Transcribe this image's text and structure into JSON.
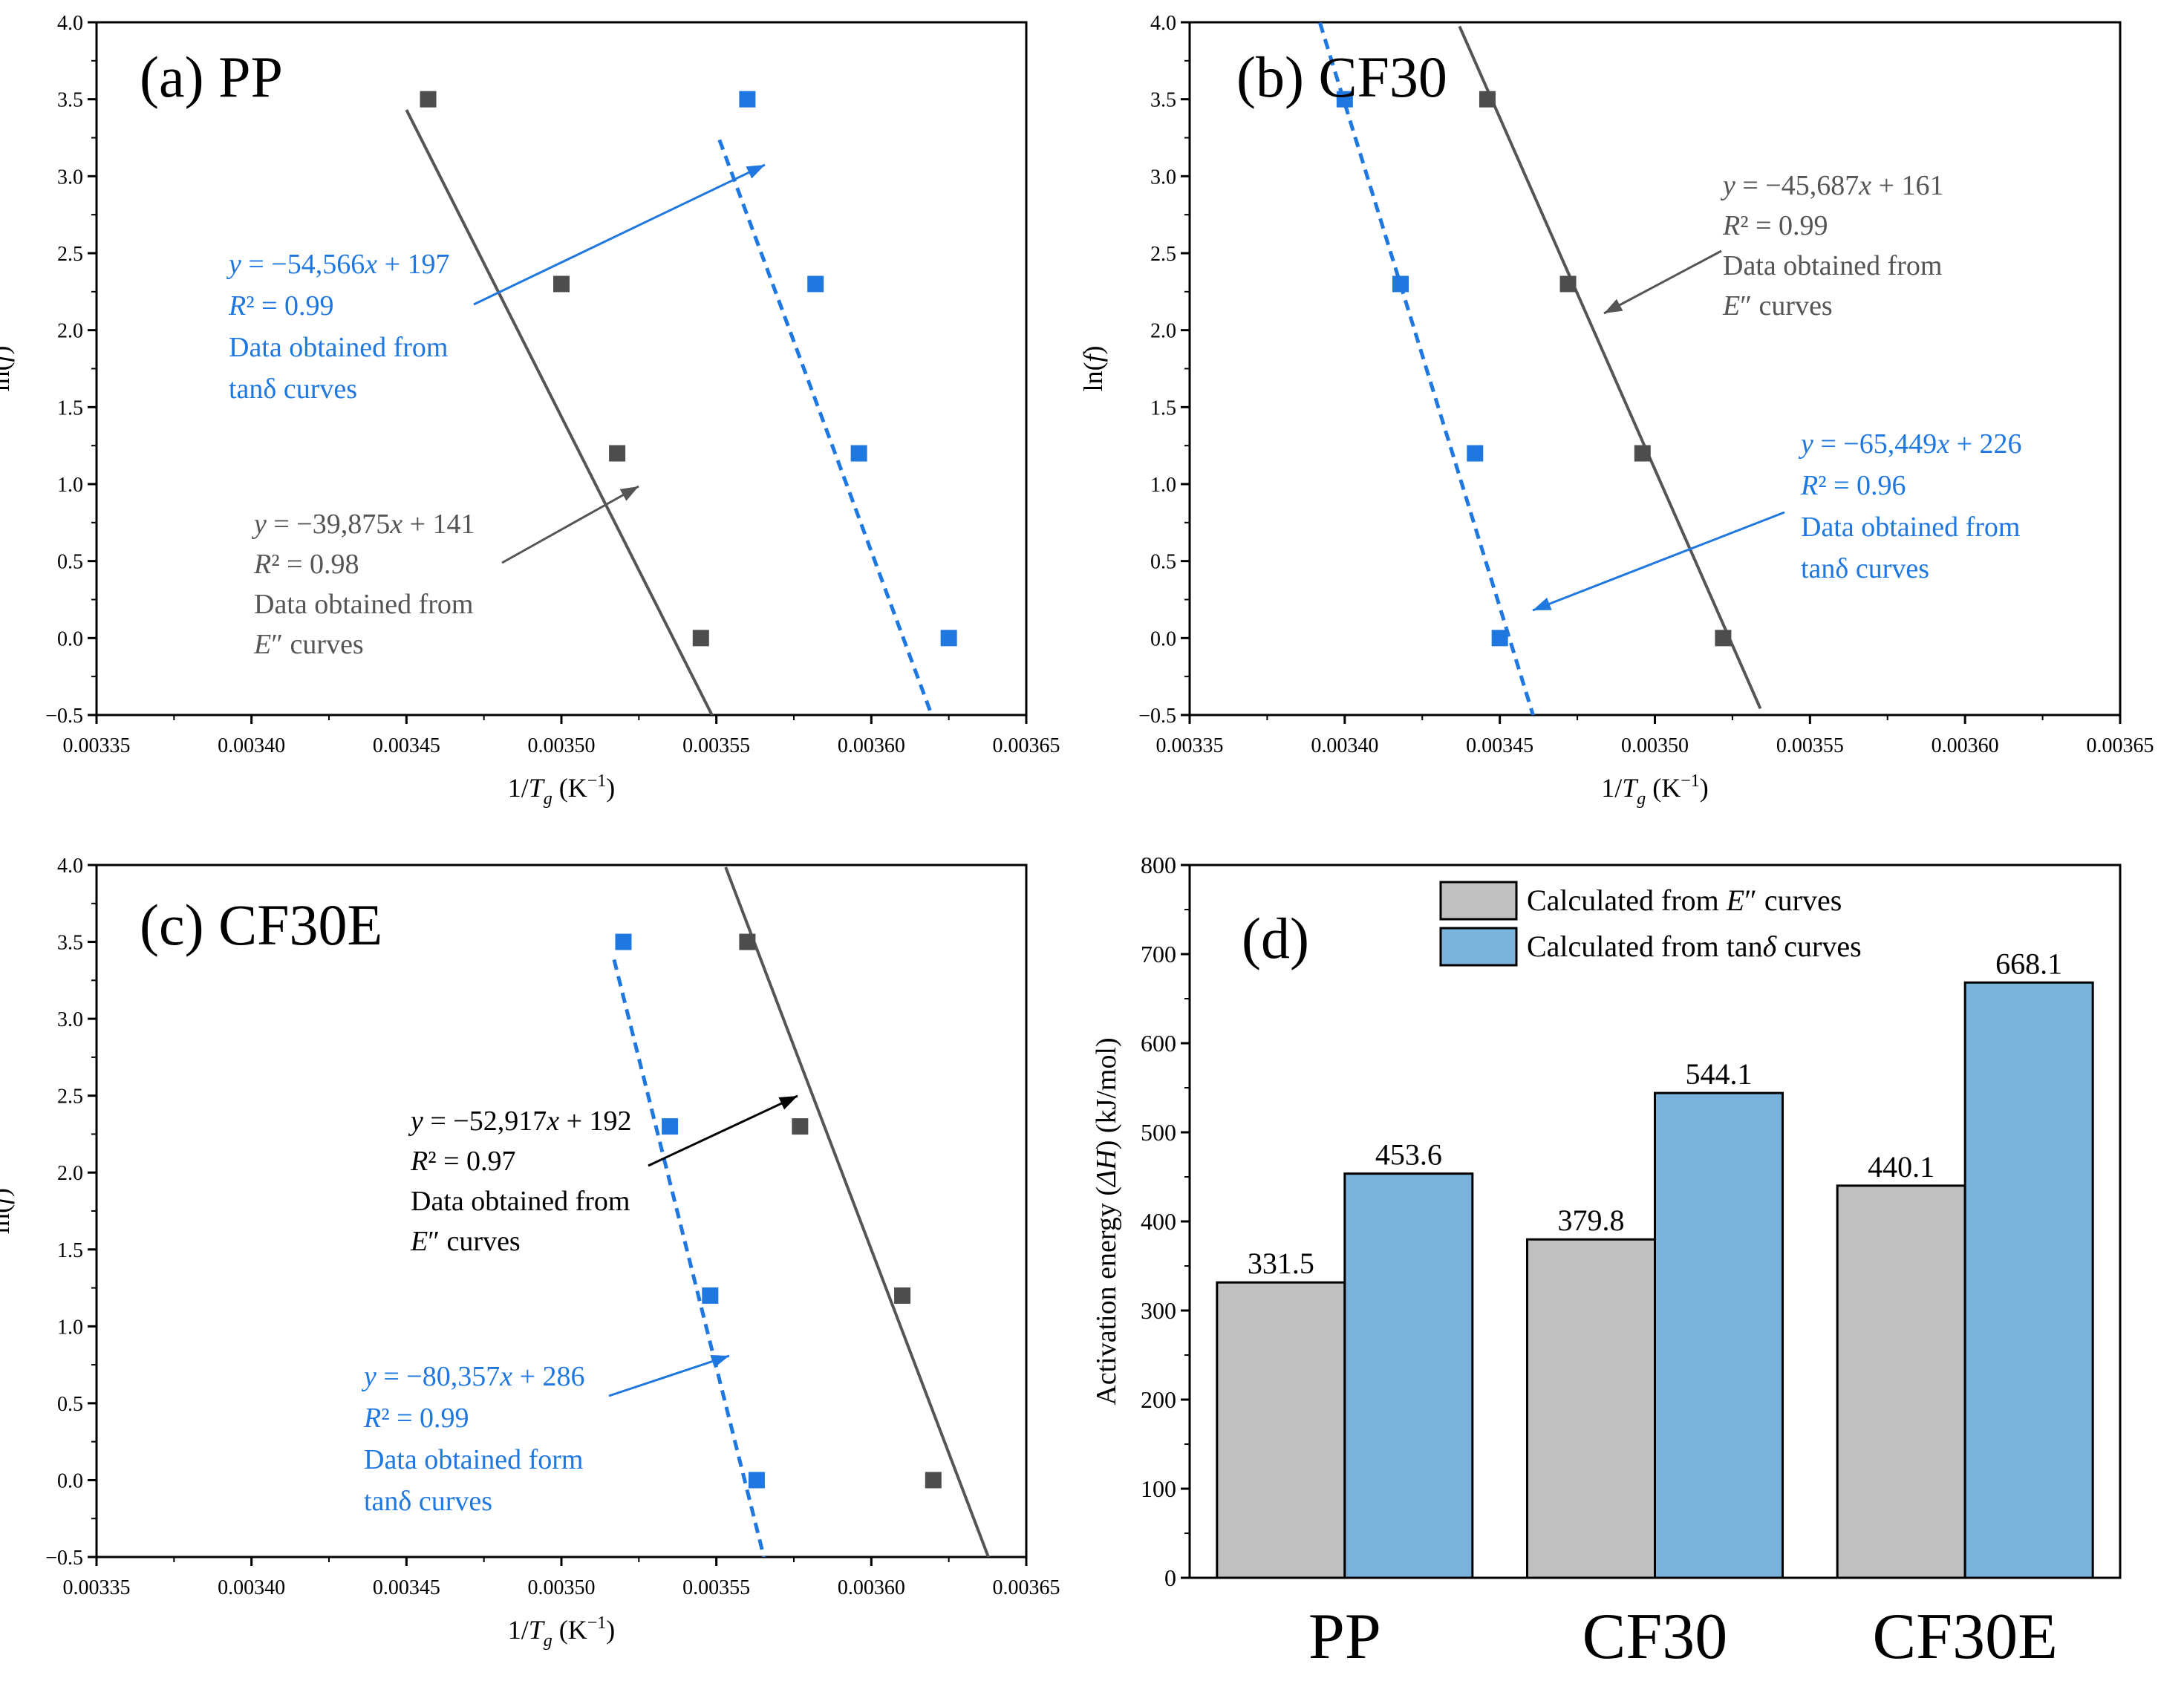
{
  "colors": {
    "gray_series": "#4d4d4d",
    "gray_line": "#555555",
    "gray_text": "#555555",
    "blue_series": "#1f77e0",
    "blue_line": "#1f77e0",
    "blue_text": "#1f77e0",
    "black_text": "#000000",
    "bar_gray": "#c0c0c0",
    "bar_blue": "#7ab3dc"
  },
  "chart_data": [
    {
      "id": "a",
      "type": "scatter",
      "title": "(a) PP",
      "xlabel_main": "1/",
      "xlabel_italic": "T",
      "xlabel_sub": "g",
      "xlabel_unit": " (K",
      "xlabel_sup": "−1",
      "xlabel_close": ")",
      "ylabel": "ln(f)",
      "xlim": [
        0.00335,
        0.00365
      ],
      "ylim": [
        -0.5,
        4.0
      ],
      "xticks": [
        "0.00335",
        "0.00340",
        "0.00345",
        "0.00350",
        "0.00355",
        "0.00360",
        "0.00365"
      ],
      "yticks": [
        "−0.5",
        "0.0",
        "0.5",
        "1.0",
        "1.5",
        "2.0",
        "2.5",
        "3.0",
        "3.5",
        "4.0"
      ],
      "series": [
        {
          "color": "gray",
          "x": [
            0.003457,
            0.0035,
            0.003518,
            0.003545
          ],
          "y": [
            3.5,
            2.3,
            1.2,
            0.0
          ],
          "fit": {
            "slope": -39875,
            "intercept": 141.0
          },
          "fit_line": {
            "x0": 0.00345,
            "x1": 0.00356
          },
          "dashed": false
        },
        {
          "color": "blue",
          "x": [
            0.00356,
            0.003582,
            0.003596,
            0.003625
          ],
          "y": [
            3.5,
            2.3,
            1.2,
            0.0
          ],
          "fit": {
            "slope": -54566,
            "intercept": 197.0
          },
          "fit_line": {
            "x0": 0.003551,
            "x1": 0.003632
          },
          "dashed": true
        }
      ],
      "annotations": [
        {
          "color": "blue",
          "lines": [
            "y = −54,566x + 197",
            "R² = 0.99",
            "Data obtained from",
            "tanδ curves"
          ]
        },
        {
          "color": "gray",
          "lines": [
            "y = −39,875x + 141",
            "R² = 0.98",
            "Data obtained from",
            "E″ curves"
          ]
        }
      ]
    },
    {
      "id": "b",
      "type": "scatter",
      "title": "(b) CF30",
      "xlabel_main": "1/",
      "xlabel_italic": "T",
      "xlabel_sub": "g",
      "xlabel_unit": " (K",
      "xlabel_sup": "−1",
      "xlabel_close": ")",
      "ylabel": "ln(f)",
      "xlim": [
        0.00335,
        0.00365
      ],
      "ylim": [
        -0.5,
        4.0
      ],
      "xticks": [
        "0.00335",
        "0.00340",
        "0.00345",
        "0.00350",
        "0.00355",
        "0.00360",
        "0.00365"
      ],
      "yticks": [
        "−0.5",
        "0.0",
        "0.5",
        "1.0",
        "1.5",
        "2.0",
        "2.5",
        "3.0",
        "3.5",
        "4.0"
      ],
      "series": [
        {
          "color": "gray",
          "x": [
            0.003446,
            0.003472,
            0.003496,
            0.003522
          ],
          "y": [
            3.5,
            2.3,
            1.2,
            0.0
          ],
          "fit": {
            "slope": -45687,
            "intercept": 161.0
          },
          "fit_line": {
            "x0": 0.003437,
            "x1": 0.003534
          },
          "dashed": false
        },
        {
          "color": "blue",
          "x": [
            0.0034,
            0.003418,
            0.003442,
            0.00345
          ],
          "y": [
            3.5,
            2.3,
            1.2,
            0.0
          ],
          "fit": {
            "slope": -65449,
            "intercept": 226.0
          },
          "fit_line": {
            "x0": 0.003392,
            "x1": 0.003461
          },
          "dashed": true
        }
      ],
      "annotations": [
        {
          "color": "gray",
          "lines": [
            "y = −45,687x + 161",
            "R² = 0.99",
            "Data obtained from",
            "E″ curves"
          ]
        },
        {
          "color": "blue",
          "lines": [
            "y = −65,449x + 226",
            "R² = 0.96",
            "Data obtained from",
            "tanδ curves"
          ]
        }
      ]
    },
    {
      "id": "c",
      "type": "scatter",
      "title": "(c) CF30E",
      "xlabel_main": "1/",
      "xlabel_italic": "T",
      "xlabel_sub": "g",
      "xlabel_unit": " (K",
      "xlabel_sup": "−1",
      "xlabel_close": ")",
      "ylabel": "ln(f)",
      "xlim": [
        0.00335,
        0.00365
      ],
      "ylim": [
        -0.5,
        4.0
      ],
      "xticks": [
        "0.00335",
        "0.00340",
        "0.00345",
        "0.00350",
        "0.00355",
        "0.00360",
        "0.00365"
      ],
      "yticks": [
        "−0.5",
        "0.0",
        "0.5",
        "1.0",
        "1.5",
        "2.0",
        "2.5",
        "3.0",
        "3.5",
        "4.0"
      ],
      "series": [
        {
          "color": "gray",
          "x": [
            0.00356,
            0.003577,
            0.00361,
            0.00362
          ],
          "y": [
            3.5,
            2.3,
            1.2,
            0.0
          ],
          "fit": {
            "slope": -52917,
            "intercept": 192.0
          },
          "fit_line": {
            "x0": 0.003553,
            "x1": 0.003638
          },
          "dashed": false
        },
        {
          "color": "blue",
          "x": [
            0.00352,
            0.003535,
            0.003548,
            0.003563
          ],
          "y": [
            3.5,
            2.3,
            1.2,
            0.0
          ],
          "fit": {
            "slope": -80357,
            "intercept": 286.0
          },
          "fit_line": {
            "x0": 0.003517,
            "x1": 0.00357
          },
          "dashed": true
        }
      ],
      "annotations": [
        {
          "color": "black",
          "lines": [
            "y = −52,917x + 192",
            "R² = 0.97",
            "Data obtained from",
            "E″ curves"
          ]
        },
        {
          "color": "blue",
          "lines": [
            "y = −80,357x + 286",
            "R² = 0.99",
            "Data obtained form",
            "tanδ curves"
          ]
        }
      ]
    },
    {
      "id": "d",
      "type": "bar",
      "title": "(d)",
      "ylabel": "Activation energy (ΔH) (kJ/mol)",
      "ylim": [
        0,
        800
      ],
      "yticks": [
        "0",
        "100",
        "200",
        "300",
        "400",
        "500",
        "600",
        "700",
        "800"
      ],
      "categories": [
        "PP",
        "CF30",
        "CF30E"
      ],
      "series": [
        {
          "name": "Calculated from E″ curves",
          "color": "gray",
          "values": [
            331.5,
            379.8,
            440.1
          ],
          "labels": [
            "331.5",
            "379.8",
            "440.1"
          ]
        },
        {
          "name": "Calculated from tanδ curves",
          "color": "blue",
          "values": [
            453.6,
            544.1,
            668.1
          ],
          "labels": [
            "453.6",
            "544.1",
            "668.1"
          ]
        }
      ],
      "legend": "top-left"
    }
  ]
}
